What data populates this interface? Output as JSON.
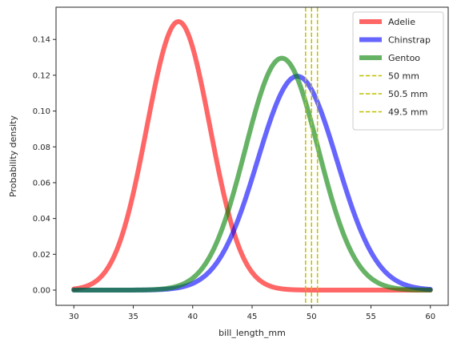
{
  "chart_data": {
    "type": "line",
    "xlabel": "bill_length_mm",
    "ylabel": "Probability density",
    "xlim": [
      28.5,
      61.5
    ],
    "ylim": [
      -0.0085,
      0.158
    ],
    "xticks": [
      30,
      35,
      40,
      45,
      50,
      55,
      60
    ],
    "xtick_labels": [
      "30",
      "35",
      "40",
      "45",
      "50",
      "55",
      "60"
    ],
    "yticks": [
      0.0,
      0.02,
      0.04,
      0.06,
      0.08,
      0.1,
      0.12,
      0.14
    ],
    "ytick_labels": [
      "0.00",
      "0.02",
      "0.04",
      "0.06",
      "0.08",
      "0.10",
      "0.12",
      "0.14"
    ],
    "grid": false,
    "legend_position": "top-right",
    "series": [
      {
        "name": "Adelie",
        "style": "solid",
        "color": "#ff0000",
        "mean": 38.8,
        "sd": 2.66
      },
      {
        "name": "Chinstrap",
        "style": "solid",
        "color": "#0000ff",
        "mean": 48.8,
        "sd": 3.34
      },
      {
        "name": "Gentoo",
        "style": "solid",
        "color": "#008000",
        "mean": 47.5,
        "sd": 3.08
      }
    ],
    "vlines": [
      {
        "name": "50 mm",
        "x": 50,
        "color": "#bfbf00"
      },
      {
        "name": "50.5 mm",
        "x": 50.5,
        "color": "#bfbf00"
      },
      {
        "name": "49.5 mm",
        "x": 49.5,
        "color": "#bfbf00"
      }
    ]
  }
}
